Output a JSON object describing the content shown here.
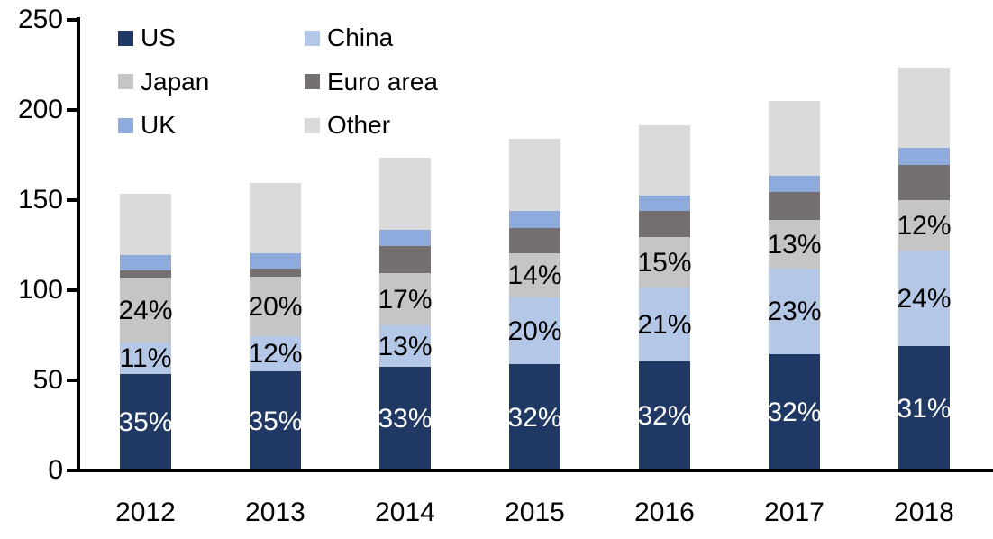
{
  "chart_data": {
    "type": "bar",
    "subtype": "stacked",
    "title": "",
    "xlabel": "",
    "ylabel": "",
    "categories": [
      "2012",
      "2013",
      "2014",
      "2015",
      "2016",
      "2017",
      "2018"
    ],
    "ylim": [
      0,
      250
    ],
    "yticks": [
      0,
      50,
      100,
      150,
      200,
      250
    ],
    "grid": "off",
    "legend_position": "top-left-two-columns",
    "legend_order": [
      "US",
      "China",
      "Japan",
      "Euro area",
      "UK",
      "Other"
    ],
    "totals": [
      153.5,
      159.5,
      173.5,
      184,
      191.5,
      205,
      223.5
    ],
    "series": [
      {
        "name": "US",
        "color": "#1f3864",
        "values": [
          53.5,
          55,
          57.5,
          59,
          60.5,
          64.5,
          69
        ],
        "pct_labels": [
          "35%",
          "35%",
          "33%",
          "32%",
          "32%",
          "32%",
          "31%"
        ],
        "pct_label_color": "#ffffff"
      },
      {
        "name": "China",
        "color": "#b4c7e7",
        "values": [
          17.5,
          19.5,
          23,
          37,
          41,
          47.5,
          53
        ],
        "pct_labels": [
          "11%",
          "12%",
          "13%",
          "20%",
          "21%",
          "23%",
          "24%"
        ],
        "pct_label_color": "#000000"
      },
      {
        "name": "Japan",
        "color": "#c5c5c5",
        "values": [
          36,
          33,
          29,
          24.5,
          28,
          27,
          28
        ],
        "pct_labels": [
          "24%",
          "20%",
          "17%",
          "14%",
          "15%",
          "13%",
          "12%"
        ],
        "pct_label_color": "#000000"
      },
      {
        "name": "Euro area",
        "color": "#757070",
        "values": [
          4,
          4.5,
          15,
          14,
          14.5,
          15.5,
          19.5
        ]
      },
      {
        "name": "UK",
        "color": "#8faadc",
        "values": [
          8.5,
          8.5,
          9,
          9.5,
          8.5,
          9,
          9.5
        ]
      },
      {
        "name": "Other",
        "color": "#dadada",
        "values": [
          34,
          39,
          40,
          40,
          39,
          41.5,
          44.5
        ]
      }
    ]
  }
}
